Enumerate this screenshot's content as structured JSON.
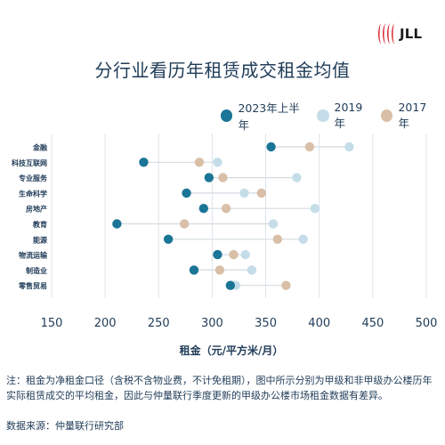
{
  "brand": {
    "logo_text": "JLL",
    "color": "#d9232e"
  },
  "chart_data": {
    "type": "dumbbell",
    "title": "分行业看历年租赁成交租金均值",
    "xlabel": "租金（元/平方米/月）",
    "ylabel": "",
    "xlim": [
      150,
      500
    ],
    "xticks": [
      150,
      200,
      250,
      300,
      350,
      400,
      450,
      500
    ],
    "grid": true,
    "legend_position": "top-right",
    "categories": [
      "金融",
      "科技互联网",
      "专业服务",
      "生命科学",
      "房地产",
      "教育",
      "能源",
      "物流运输",
      "制造业",
      "零售贸易"
    ],
    "series": [
      {
        "name": "2023年上半年",
        "color": "#1a7597",
        "values": [
          355,
          236,
          297,
          276,
          292,
          211,
          259,
          305,
          283,
          317
        ]
      },
      {
        "name": "2019年",
        "color": "#c4dde8",
        "values": [
          428,
          305,
          379,
          330,
          396,
          357,
          385,
          331,
          337,
          322
        ]
      },
      {
        "name": "2017年",
        "color": "#d9bfa7",
        "values": [
          391,
          288,
          310,
          346,
          313,
          274,
          361,
          320,
          307,
          369
        ]
      }
    ]
  },
  "footnote": {
    "note": "注：租金为净租金口径（含税不含物业费，不计免租期），图中所示分别为甲级和非甲级办公楼历年实际租赁成交的平均租金，因此与仲量联行季度更新的甲级办公楼市场租金数据有差异。",
    "source": "数据来源：仲量联行研究部"
  }
}
